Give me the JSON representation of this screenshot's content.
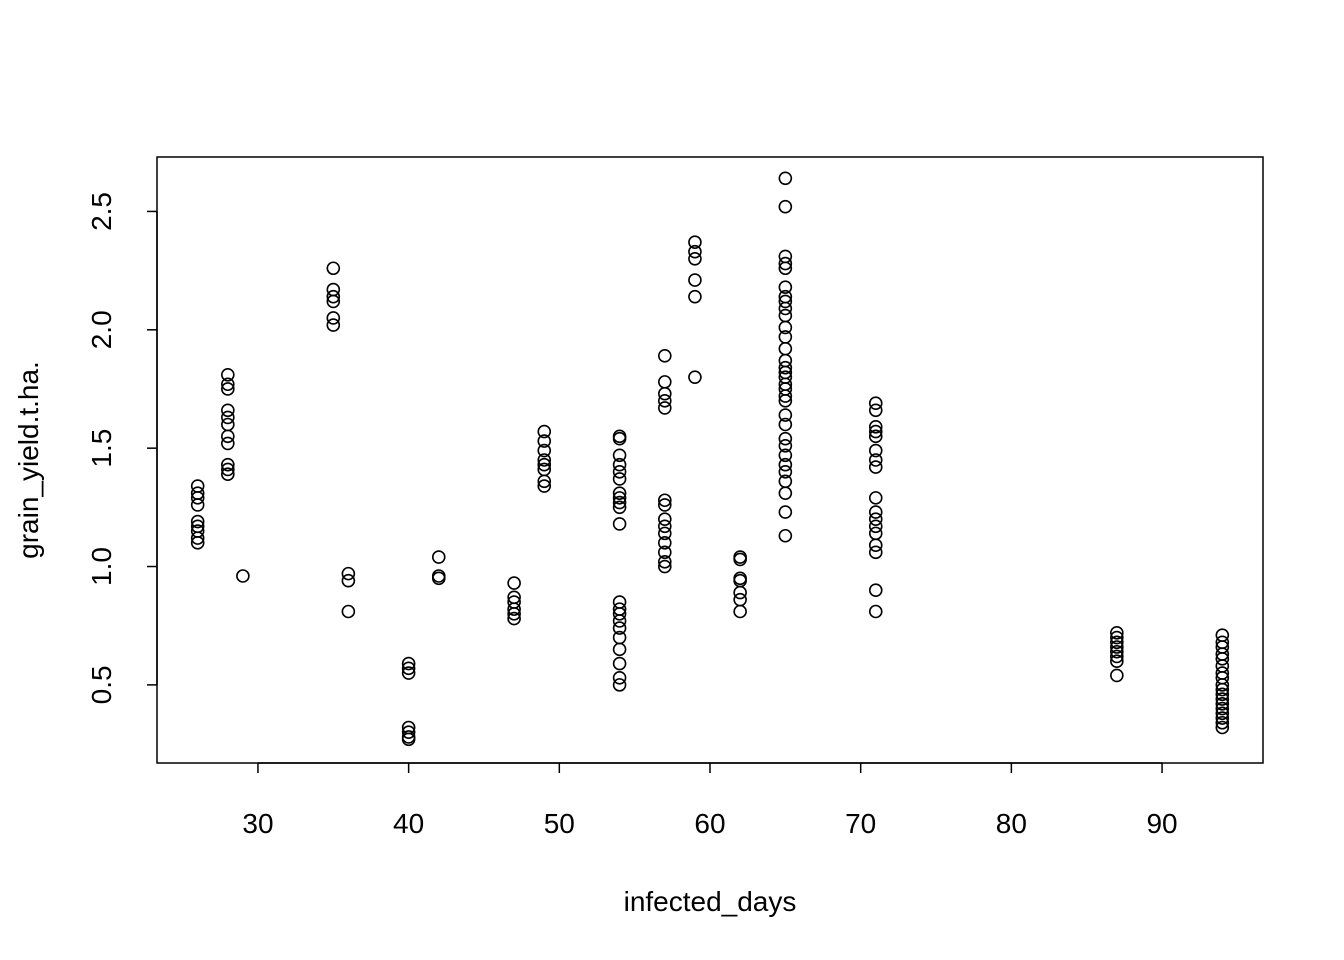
{
  "chart_data": {
    "type": "scatter",
    "title": "",
    "xlabel": "infected_days",
    "ylabel": "grain_yield.t.ha.",
    "xlim": [
      23.3,
      96.7
    ],
    "ylim": [
      0.17,
      2.73
    ],
    "xticks": [
      30,
      40,
      50,
      60,
      70,
      80,
      90
    ],
    "yticks": [
      0.5,
      1.0,
      1.5,
      2.0,
      2.5
    ],
    "xtick_labels": [
      "30",
      "40",
      "50",
      "60",
      "70",
      "80",
      "90"
    ],
    "ytick_labels": [
      "0.5",
      "1.0",
      "1.5",
      "2.0",
      "2.5"
    ],
    "grid": false,
    "marker": "open-circle",
    "series": [
      {
        "points": [
          [
            26,
            1.34
          ],
          [
            26,
            1.31
          ],
          [
            26,
            1.29
          ],
          [
            26,
            1.26
          ],
          [
            26,
            1.19
          ],
          [
            26,
            1.17
          ],
          [
            26,
            1.15
          ],
          [
            26,
            1.12
          ],
          [
            26,
            1.1
          ],
          [
            28,
            1.81
          ],
          [
            28,
            1.77
          ],
          [
            28,
            1.75
          ],
          [
            28,
            1.66
          ],
          [
            28,
            1.63
          ],
          [
            28,
            1.6
          ],
          [
            28,
            1.55
          ],
          [
            28,
            1.52
          ],
          [
            28,
            1.43
          ],
          [
            28,
            1.41
          ],
          [
            28,
            1.39
          ],
          [
            29,
            0.96
          ],
          [
            35,
            2.26
          ],
          [
            35,
            2.17
          ],
          [
            35,
            2.14
          ],
          [
            35,
            2.12
          ],
          [
            35,
            2.05
          ],
          [
            35,
            2.02
          ],
          [
            36,
            0.97
          ],
          [
            36,
            0.94
          ],
          [
            36,
            0.81
          ],
          [
            40,
            0.59
          ],
          [
            40,
            0.57
          ],
          [
            40,
            0.55
          ],
          [
            40,
            0.32
          ],
          [
            40,
            0.3
          ],
          [
            40,
            0.28
          ],
          [
            40,
            0.27
          ],
          [
            42,
            1.04
          ],
          [
            42,
            0.96
          ],
          [
            42,
            0.95
          ],
          [
            47,
            0.93
          ],
          [
            47,
            0.87
          ],
          [
            47,
            0.85
          ],
          [
            47,
            0.82
          ],
          [
            47,
            0.8
          ],
          [
            47,
            0.78
          ],
          [
            49,
            1.57
          ],
          [
            49,
            1.53
          ],
          [
            49,
            1.49
          ],
          [
            49,
            1.45
          ],
          [
            49,
            1.43
          ],
          [
            49,
            1.41
          ],
          [
            49,
            1.36
          ],
          [
            49,
            1.34
          ],
          [
            54,
            1.55
          ],
          [
            54,
            1.54
          ],
          [
            54,
            1.47
          ],
          [
            54,
            1.43
          ],
          [
            54,
            1.4
          ],
          [
            54,
            1.37
          ],
          [
            54,
            1.31
          ],
          [
            54,
            1.29
          ],
          [
            54,
            1.27
          ],
          [
            54,
            1.25
          ],
          [
            54,
            1.18
          ],
          [
            54,
            0.85
          ],
          [
            54,
            0.82
          ],
          [
            54,
            0.8
          ],
          [
            54,
            0.77
          ],
          [
            54,
            0.74
          ],
          [
            54,
            0.7
          ],
          [
            54,
            0.65
          ],
          [
            54,
            0.59
          ],
          [
            54,
            0.53
          ],
          [
            54,
            0.5
          ],
          [
            57,
            1.89
          ],
          [
            57,
            1.78
          ],
          [
            57,
            1.73
          ],
          [
            57,
            1.7
          ],
          [
            57,
            1.67
          ],
          [
            57,
            1.28
          ],
          [
            57,
            1.26
          ],
          [
            57,
            1.2
          ],
          [
            57,
            1.17
          ],
          [
            57,
            1.14
          ],
          [
            57,
            1.1
          ],
          [
            57,
            1.06
          ],
          [
            57,
            1.02
          ],
          [
            57,
            1.0
          ],
          [
            59,
            2.37
          ],
          [
            59,
            2.33
          ],
          [
            59,
            2.3
          ],
          [
            59,
            2.21
          ],
          [
            59,
            2.14
          ],
          [
            59,
            1.8
          ],
          [
            62,
            1.04
          ],
          [
            62,
            1.03
          ],
          [
            62,
            0.95
          ],
          [
            62,
            0.94
          ],
          [
            62,
            0.89
          ],
          [
            62,
            0.86
          ],
          [
            62,
            0.81
          ],
          [
            65,
            2.64
          ],
          [
            65,
            2.52
          ],
          [
            65,
            2.31
          ],
          [
            65,
            2.28
          ],
          [
            65,
            2.26
          ],
          [
            65,
            2.18
          ],
          [
            65,
            2.14
          ],
          [
            65,
            2.12
          ],
          [
            65,
            2.09
          ],
          [
            65,
            2.06
          ],
          [
            65,
            2.01
          ],
          [
            65,
            1.97
          ],
          [
            65,
            1.92
          ],
          [
            65,
            1.87
          ],
          [
            65,
            1.84
          ],
          [
            65,
            1.82
          ],
          [
            65,
            1.8
          ],
          [
            65,
            1.77
          ],
          [
            65,
            1.75
          ],
          [
            65,
            1.72
          ],
          [
            65,
            1.7
          ],
          [
            65,
            1.64
          ],
          [
            65,
            1.6
          ],
          [
            65,
            1.54
          ],
          [
            65,
            1.51
          ],
          [
            65,
            1.47
          ],
          [
            65,
            1.43
          ],
          [
            65,
            1.4
          ],
          [
            65,
            1.36
          ],
          [
            65,
            1.31
          ],
          [
            65,
            1.23
          ],
          [
            65,
            1.13
          ],
          [
            71,
            1.69
          ],
          [
            71,
            1.66
          ],
          [
            71,
            1.59
          ],
          [
            71,
            1.57
          ],
          [
            71,
            1.55
          ],
          [
            71,
            1.49
          ],
          [
            71,
            1.45
          ],
          [
            71,
            1.42
          ],
          [
            71,
            1.29
          ],
          [
            71,
            1.23
          ],
          [
            71,
            1.2
          ],
          [
            71,
            1.17
          ],
          [
            71,
            1.14
          ],
          [
            71,
            1.09
          ],
          [
            71,
            1.06
          ],
          [
            71,
            0.9
          ],
          [
            71,
            0.81
          ],
          [
            87,
            0.72
          ],
          [
            87,
            0.7
          ],
          [
            87,
            0.68
          ],
          [
            87,
            0.66
          ],
          [
            87,
            0.64
          ],
          [
            87,
            0.62
          ],
          [
            87,
            0.6
          ],
          [
            87,
            0.54
          ],
          [
            94,
            0.71
          ],
          [
            94,
            0.68
          ],
          [
            94,
            0.66
          ],
          [
            94,
            0.63
          ],
          [
            94,
            0.61
          ],
          [
            94,
            0.58
          ],
          [
            94,
            0.55
          ],
          [
            94,
            0.53
          ],
          [
            94,
            0.5
          ],
          [
            94,
            0.48
          ],
          [
            94,
            0.46
          ],
          [
            94,
            0.44
          ],
          [
            94,
            0.42
          ],
          [
            94,
            0.4
          ],
          [
            94,
            0.38
          ],
          [
            94,
            0.36
          ],
          [
            94,
            0.34
          ],
          [
            94,
            0.32
          ]
        ]
      }
    ]
  }
}
